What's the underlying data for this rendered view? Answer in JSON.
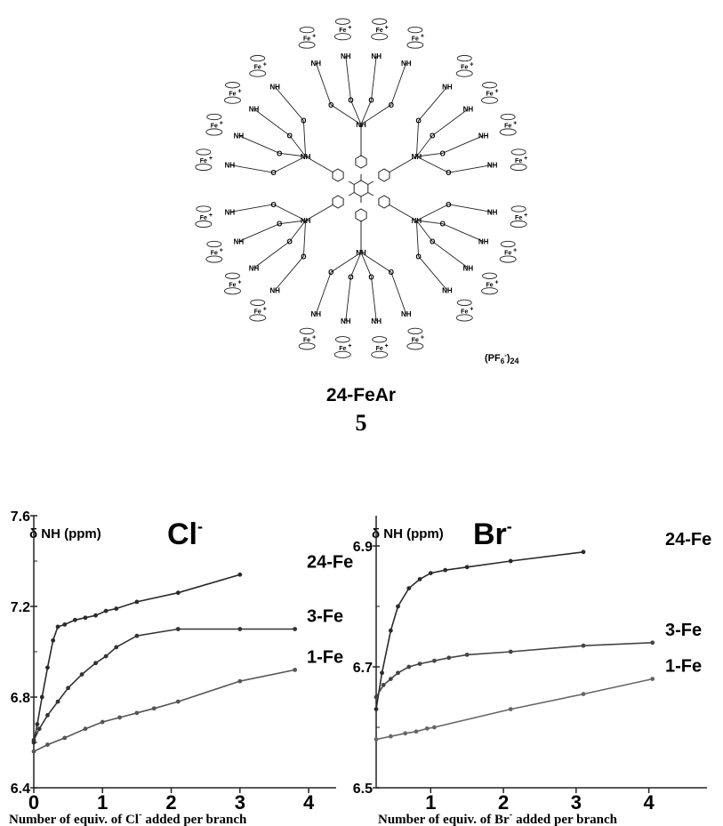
{
  "molecule": {
    "name": "24-FeAr",
    "number": "5",
    "counterion_base": "(PF",
    "counterion_sub": "6",
    "counterion_sup": "-",
    "counterion_close": ")",
    "counterion_count": "24",
    "labels": {
      "fe": "Fe",
      "plus": "+",
      "nh": "NH",
      "hn": "HN",
      "n": "N",
      "h": "H",
      "o": "O"
    }
  },
  "chart_data": [
    {
      "type": "line",
      "title": "Cl",
      "title_sup": "-",
      "ylabel": "δ NH (ppm)",
      "xlabel_pre": "Number of equiv. of Cl",
      "xlabel_sup": "-",
      "xlabel_post": " added per branch",
      "xlim": [
        0,
        4.4
      ],
      "ylim": [
        6.4,
        7.6
      ],
      "xticks": [
        0,
        1,
        2,
        3,
        4
      ],
      "xtick_labels": [
        "0",
        "1",
        "2",
        "3",
        "4"
      ],
      "yticks": [
        6.4,
        6.8,
        7.2,
        7.6
      ],
      "ytick_labels": [
        "6.4",
        "6.8",
        "7.2",
        "7.6"
      ],
      "series": [
        {
          "name": "24-Fe",
          "color": "#2a2a2a",
          "x": [
            0,
            0.05,
            0.12,
            0.2,
            0.28,
            0.35,
            0.45,
            0.6,
            0.75,
            0.9,
            1.05,
            1.2,
            1.5,
            2.1,
            3.0
          ],
          "y": [
            6.6,
            6.68,
            6.8,
            6.93,
            7.05,
            7.11,
            7.12,
            7.14,
            7.15,
            7.16,
            7.18,
            7.19,
            7.22,
            7.26,
            7.34
          ]
        },
        {
          "name": "3-Fe",
          "color": "#333333",
          "x": [
            0,
            0.08,
            0.2,
            0.35,
            0.5,
            0.7,
            0.9,
            1.05,
            1.2,
            1.5,
            2.1,
            3.0,
            3.8
          ],
          "y": [
            6.61,
            6.66,
            6.72,
            6.78,
            6.84,
            6.9,
            6.95,
            6.98,
            7.02,
            7.07,
            7.1,
            7.1,
            7.1
          ]
        },
        {
          "name": "1-Fe",
          "color": "#555555",
          "x": [
            0,
            0.2,
            0.45,
            0.75,
            1.0,
            1.25,
            1.5,
            1.75,
            2.1,
            3.0,
            3.8
          ],
          "y": [
            6.56,
            6.59,
            6.62,
            6.66,
            6.69,
            6.71,
            6.73,
            6.75,
            6.78,
            6.87,
            6.92
          ]
        }
      ]
    },
    {
      "type": "line",
      "title": "Br",
      "title_sup": "-",
      "ylabel": "δ NH (ppm)",
      "xlabel_pre": "Number of equiv. of Br",
      "xlabel_sup": "-",
      "xlabel_post": " added per branch",
      "xlim": [
        0.25,
        4.8
      ],
      "ylim": [
        6.5,
        6.95
      ],
      "xticks": [
        1,
        2,
        3,
        4
      ],
      "xtick_labels": [
        "1",
        "2",
        "3",
        "4"
      ],
      "yticks": [
        6.5,
        6.7,
        6.9
      ],
      "ytick_labels": [
        "6.5",
        "6.7",
        "6.9"
      ],
      "series": [
        {
          "name": "24-Fe",
          "color": "#2a2a2a",
          "x": [
            0.25,
            0.33,
            0.45,
            0.55,
            0.7,
            0.85,
            1.0,
            1.2,
            1.5,
            2.1,
            3.1
          ],
          "y": [
            6.63,
            6.69,
            6.76,
            6.8,
            6.83,
            6.845,
            6.855,
            6.86,
            6.865,
            6.875,
            6.89
          ]
        },
        {
          "name": "3-Fe",
          "color": "#444444",
          "x": [
            0.25,
            0.35,
            0.45,
            0.55,
            0.7,
            0.85,
            1.05,
            1.25,
            1.5,
            2.1,
            3.1,
            4.05
          ],
          "y": [
            6.65,
            6.67,
            6.68,
            6.69,
            6.7,
            6.705,
            6.71,
            6.715,
            6.72,
            6.725,
            6.735,
            6.74
          ]
        },
        {
          "name": "1-Fe",
          "color": "#666666",
          "x": [
            0.25,
            0.45,
            0.65,
            0.8,
            0.95,
            1.05,
            2.1,
            3.1,
            4.05
          ],
          "y": [
            6.58,
            6.585,
            6.59,
            6.593,
            6.598,
            6.6,
            6.63,
            6.655,
            6.68
          ]
        }
      ]
    }
  ]
}
